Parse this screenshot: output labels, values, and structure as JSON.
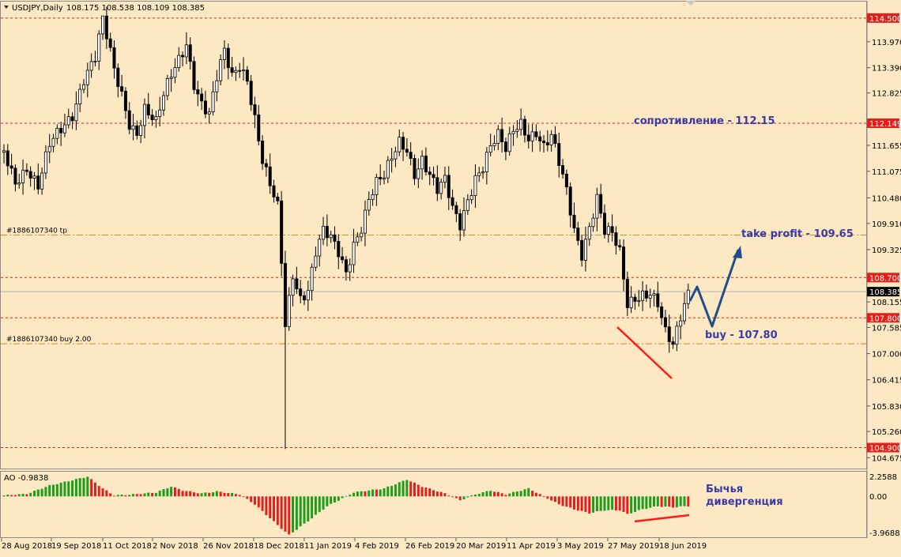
{
  "header": {
    "title": "USDJPY,Daily",
    "ohlc": "108.175 108.538 108.109 108.385"
  },
  "price_scale": {
    "ticks": [
      "113.970",
      "113.390",
      "112.825",
      "111.655",
      "111.075",
      "110.480",
      "109.910",
      "109.325",
      "108.155",
      "107.585",
      "107.000",
      "106.415",
      "105.830",
      "105.260",
      "104.675"
    ],
    "red_levels": [
      {
        "label": "114.500",
        "value": 114.5
      },
      {
        "label": "112.149",
        "value": 112.149
      },
      {
        "label": "108.700",
        "value": 108.7
      },
      {
        "label": "107.800",
        "value": 107.8
      },
      {
        "label": "104.900",
        "value": 104.9
      }
    ],
    "order_levels": [
      {
        "text": "#1886107340 tp",
        "value": 109.65
      },
      {
        "text": "#1886107340 buy 2.00",
        "value": 107.22
      }
    ],
    "current": {
      "label": "108.385",
      "value": 108.385
    }
  },
  "annotations": {
    "resistance": "сопротивление - 112.15",
    "take_profit": "take profit - 109.65",
    "buy": "buy - 107.80",
    "divergence_line1": "Бычья",
    "divergence_line2": "дивергенция"
  },
  "indicator": {
    "label": "AO -0.9838",
    "ticks": [
      "2.2588",
      "0.00",
      "-3.9688"
    ]
  },
  "time_axis": [
    "28 Aug 2018",
    "19 Sep 2018",
    "11 Oct 2018",
    "2 Nov 2018",
    "26 Nov 2018",
    "18 Dec 2018",
    "11 Jan 2019",
    "4 Feb 2019",
    "26 Feb 2019",
    "20 Mar 2019",
    "11 Apr 2019",
    "3 May 2019",
    "27 May 2019",
    "18 Jun 2019"
  ],
  "colors": {
    "background": "#fde8c4",
    "level_red": "#e0201a",
    "order_orange": "#d98820",
    "arrow_blue": "#1f4e8c",
    "divergence_red": "#ff1a1a",
    "annotation_blue": "#3a3aaa",
    "ao_up": "#1c9e1c",
    "ao_down": "#e02020"
  },
  "chart_data": {
    "type": "candlestick",
    "symbol": "USDJPY",
    "timeframe": "Daily",
    "ylim": [
      104.45,
      114.85
    ],
    "path_points": [
      [
        0,
        111.5
      ],
      [
        3,
        110.9
      ],
      [
        6,
        111.2
      ],
      [
        9,
        110.7
      ],
      [
        12,
        111.6
      ],
      [
        15,
        112.0
      ],
      [
        18,
        112.4
      ],
      [
        21,
        113.2
      ],
      [
        24,
        113.6
      ],
      [
        26,
        114.4
      ],
      [
        29,
        113.3
      ],
      [
        31,
        112.8
      ],
      [
        33,
        112.2
      ],
      [
        35,
        112.0
      ],
      [
        37,
        112.5
      ],
      [
        40,
        112.1
      ],
      [
        42,
        112.7
      ],
      [
        44,
        113.2
      ],
      [
        46,
        113.6
      ],
      [
        48,
        114.0
      ],
      [
        50,
        113.1
      ],
      [
        52,
        112.6
      ],
      [
        54,
        112.3
      ],
      [
        56,
        113.1
      ],
      [
        58,
        113.7
      ],
      [
        60,
        113.2
      ],
      [
        62,
        113.5
      ],
      [
        64,
        113.2
      ],
      [
        66,
        112.3
      ],
      [
        68,
        111.3
      ],
      [
        70,
        110.7
      ],
      [
        72,
        110.2
      ],
      [
        73,
        109.0
      ],
      [
        74,
        107.6
      ],
      [
        76,
        108.8
      ],
      [
        78,
        108.3
      ],
      [
        80,
        108.5
      ],
      [
        82,
        109.3
      ],
      [
        84,
        109.7
      ],
      [
        86,
        109.5
      ],
      [
        88,
        109.2
      ],
      [
        90,
        108.8
      ],
      [
        92,
        109.5
      ],
      [
        94,
        109.9
      ],
      [
        96,
        110.5
      ],
      [
        98,
        110.8
      ],
      [
        100,
        110.9
      ],
      [
        102,
        111.3
      ],
      [
        104,
        111.7
      ],
      [
        106,
        111.6
      ],
      [
        108,
        111.1
      ],
      [
        110,
        111.4
      ],
      [
        112,
        111.0
      ],
      [
        114,
        110.6
      ],
      [
        116,
        110.8
      ],
      [
        118,
        110.2
      ],
      [
        120,
        109.9
      ],
      [
        122,
        110.5
      ],
      [
        124,
        111.0
      ],
      [
        126,
        111.2
      ],
      [
        128,
        111.6
      ],
      [
        130,
        111.8
      ],
      [
        132,
        111.5
      ],
      [
        134,
        112.0
      ],
      [
        136,
        112.2
      ],
      [
        138,
        111.9
      ],
      [
        140,
        112.0
      ],
      [
        142,
        111.6
      ],
      [
        144,
        111.8
      ],
      [
        146,
        111.2
      ],
      [
        148,
        110.6
      ],
      [
        150,
        109.8
      ],
      [
        152,
        109.3
      ],
      [
        154,
        109.9
      ],
      [
        156,
        110.5
      ],
      [
        158,
        109.7
      ],
      [
        160,
        109.6
      ],
      [
        162,
        109.2
      ],
      [
        164,
        108.1
      ],
      [
        166,
        108.3
      ],
      [
        168,
        108.4
      ],
      [
        170,
        108.4
      ],
      [
        172,
        108.1
      ],
      [
        174,
        107.4
      ],
      [
        176,
        107.1
      ],
      [
        178,
        107.8
      ],
      [
        180,
        108.4
      ]
    ]
  },
  "ao_data": {
    "type": "histogram",
    "ylim": [
      -3.9688,
      2.2588
    ],
    "key_points": [
      [
        0,
        0.1
      ],
      [
        6,
        0.25
      ],
      [
        12,
        1.1
      ],
      [
        22,
        2.0
      ],
      [
        26,
        0.8
      ],
      [
        29,
        0.1
      ],
      [
        34,
        0.2
      ],
      [
        40,
        0.4
      ],
      [
        44,
        1.0
      ],
      [
        47,
        0.6
      ],
      [
        52,
        0.3
      ],
      [
        56,
        0.5
      ],
      [
        62,
        0.2
      ],
      [
        66,
        -0.8
      ],
      [
        72,
        -2.9
      ],
      [
        75,
        -3.9
      ],
      [
        80,
        -2.5
      ],
      [
        85,
        -1.0
      ],
      [
        92,
        0.4
      ],
      [
        100,
        0.8
      ],
      [
        106,
        1.7
      ],
      [
        110,
        1.0
      ],
      [
        116,
        0.3
      ],
      [
        120,
        -0.4
      ],
      [
        124,
        0.2
      ],
      [
        128,
        0.6
      ],
      [
        132,
        0.2
      ],
      [
        138,
        0.8
      ],
      [
        142,
        0.0
      ],
      [
        146,
        -0.8
      ],
      [
        150,
        -1.3
      ],
      [
        154,
        -1.7
      ],
      [
        158,
        -1.4
      ],
      [
        162,
        -1.4
      ],
      [
        164,
        -1.8
      ],
      [
        168,
        -1.3
      ],
      [
        172,
        -1.0
      ],
      [
        176,
        -1.1
      ],
      [
        180,
        -0.98
      ]
    ]
  }
}
